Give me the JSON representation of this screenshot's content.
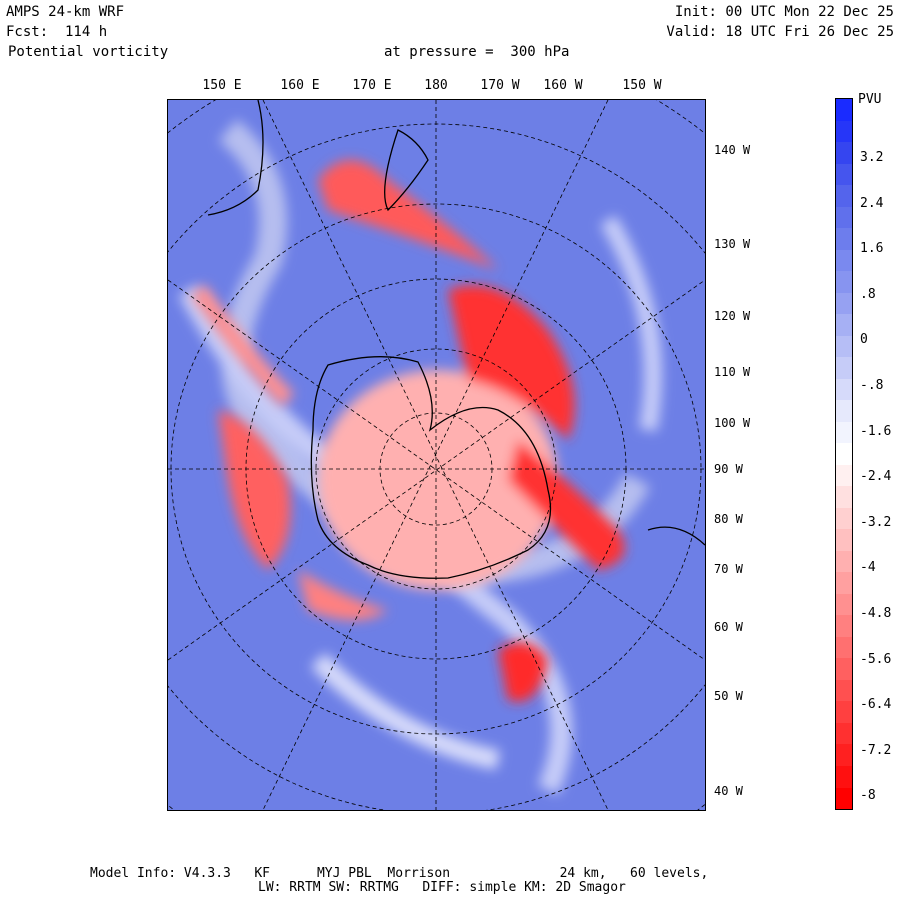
{
  "header": {
    "model": "AMPS 24-km WRF",
    "forecast": "Fcst:  114 h",
    "field": "Potential vorticity",
    "level": "at pressure =  300 hPa",
    "init": "Init: 00 UTC Mon 22 Dec 25",
    "valid": "Valid: 18 UTC Fri 26 Dec 25"
  },
  "map": {
    "top_longitude_labels": [
      "150 E",
      "160 E",
      "170 E",
      "180",
      "170 W",
      "160 W",
      "150 W"
    ],
    "right_longitude_labels": [
      "140 W",
      "130 W",
      "120 W",
      "110 W",
      "100 W",
      "90 W",
      "80 W",
      "70 W",
      "60 W",
      "50 W",
      "40 W"
    ],
    "colors": {
      "background_blue": "#6d7fe6",
      "strong_red": "#ff1010",
      "light_red": "#ff9d9d",
      "white": "#ffffff",
      "coast": "#000000"
    }
  },
  "colorbar": {
    "unit": "PVU",
    "tick_labels": [
      "3.2",
      "2.4",
      "1.6",
      ".8",
      "0",
      "-.8",
      "-1.6",
      "-2.4",
      "-3.2",
      "-4",
      "-4.8",
      "-5.6",
      "-6.4",
      "-7.2",
      "-8"
    ],
    "colors": [
      "#1a2bff",
      "#2636f8",
      "#3545f0",
      "#4555ee",
      "#5464ec",
      "#6070ec",
      "#6d7ded",
      "#7a89ef",
      "#8794f0",
      "#96a1f2",
      "#a6b0f4",
      "#b6bef6",
      "#c6ccf8",
      "#d6dafa",
      "#e6e9fc",
      "#f2f4fe",
      "#ffffff",
      "#fff0f0",
      "#ffe0e0",
      "#ffd0d0",
      "#ffc0c0",
      "#ffb0b0",
      "#ffa0a0",
      "#ff9090",
      "#ff8080",
      "#ff7070",
      "#ff6060",
      "#ff5050",
      "#ff4040",
      "#ff3030",
      "#ff2020",
      "#ff1010",
      "#ff0000"
    ]
  },
  "footer": {
    "line1": "Model Info: V4.3.3   KF      MYJ PBL  Morrison              24 km,   60 levels,",
    "line2": "LW: RRTM SW: RRTMG   DIFF: simple KM: 2D Smagor"
  }
}
